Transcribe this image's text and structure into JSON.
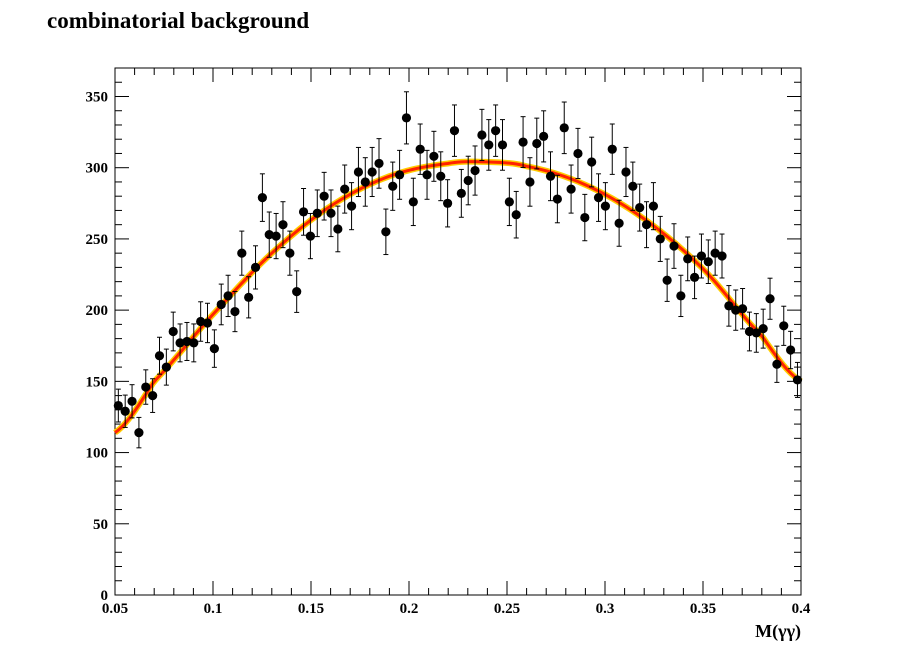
{
  "chart_data": {
    "type": "scatter",
    "title": "combinatorial background",
    "xlabel": "M(γγ)",
    "ylabel": "",
    "xlim": [
      0.05,
      0.4
    ],
    "ylim": [
      0,
      370
    ],
    "xticks": [
      "0.05",
      "0.1",
      "0.15",
      "0.2",
      "0.25",
      "0.3",
      "0.35",
      "0.4"
    ],
    "yticks": [
      "0",
      "50",
      "100",
      "150",
      "200",
      "250",
      "300",
      "350"
    ],
    "grid": false,
    "colors": {
      "points": "#000000",
      "fit": "#ff2200",
      "fit_band": "#ffcc00"
    },
    "points": [
      {
        "x": 0.0517,
        "y": 133
      },
      {
        "x": 0.0552,
        "y": 129
      },
      {
        "x": 0.0587,
        "y": 136
      },
      {
        "x": 0.0622,
        "y": 114
      },
      {
        "x": 0.0657,
        "y": 146
      },
      {
        "x": 0.0692,
        "y": 140
      },
      {
        "x": 0.0727,
        "y": 168
      },
      {
        "x": 0.0762,
        "y": 160
      },
      {
        "x": 0.0797,
        "y": 185
      },
      {
        "x": 0.0832,
        "y": 177
      },
      {
        "x": 0.0867,
        "y": 178
      },
      {
        "x": 0.0902,
        "y": 177
      },
      {
        "x": 0.0937,
        "y": 192
      },
      {
        "x": 0.0972,
        "y": 191
      },
      {
        "x": 0.1007,
        "y": 173
      },
      {
        "x": 0.1042,
        "y": 204
      },
      {
        "x": 0.1077,
        "y": 210
      },
      {
        "x": 0.1112,
        "y": 199
      },
      {
        "x": 0.1147,
        "y": 240
      },
      {
        "x": 0.1182,
        "y": 209
      },
      {
        "x": 0.1217,
        "y": 230
      },
      {
        "x": 0.1252,
        "y": 279
      },
      {
        "x": 0.1287,
        "y": 253
      },
      {
        "x": 0.1322,
        "y": 252
      },
      {
        "x": 0.1357,
        "y": 260
      },
      {
        "x": 0.1392,
        "y": 240
      },
      {
        "x": 0.1427,
        "y": 213
      },
      {
        "x": 0.1462,
        "y": 269
      },
      {
        "x": 0.1497,
        "y": 252
      },
      {
        "x": 0.1532,
        "y": 268
      },
      {
        "x": 0.1567,
        "y": 280
      },
      {
        "x": 0.1602,
        "y": 268
      },
      {
        "x": 0.1637,
        "y": 257
      },
      {
        "x": 0.1672,
        "y": 285
      },
      {
        "x": 0.1707,
        "y": 273
      },
      {
        "x": 0.1742,
        "y": 297
      },
      {
        "x": 0.1777,
        "y": 290
      },
      {
        "x": 0.1812,
        "y": 297
      },
      {
        "x": 0.1847,
        "y": 303
      },
      {
        "x": 0.1882,
        "y": 255
      },
      {
        "x": 0.1917,
        "y": 287
      },
      {
        "x": 0.1952,
        "y": 295
      },
      {
        "x": 0.1987,
        "y": 335
      },
      {
        "x": 0.2022,
        "y": 276
      },
      {
        "x": 0.2057,
        "y": 313
      },
      {
        "x": 0.2092,
        "y": 295
      },
      {
        "x": 0.2127,
        "y": 308
      },
      {
        "x": 0.2162,
        "y": 294
      },
      {
        "x": 0.2197,
        "y": 275
      },
      {
        "x": 0.2232,
        "y": 326
      },
      {
        "x": 0.2267,
        "y": 282
      },
      {
        "x": 0.2302,
        "y": 291
      },
      {
        "x": 0.2337,
        "y": 298
      },
      {
        "x": 0.2372,
        "y": 323
      },
      {
        "x": 0.2407,
        "y": 316
      },
      {
        "x": 0.2442,
        "y": 326
      },
      {
        "x": 0.2477,
        "y": 316
      },
      {
        "x": 0.2512,
        "y": 276
      },
      {
        "x": 0.2547,
        "y": 267
      },
      {
        "x": 0.2582,
        "y": 318
      },
      {
        "x": 0.2617,
        "y": 290
      },
      {
        "x": 0.2652,
        "y": 317
      },
      {
        "x": 0.2687,
        "y": 322
      },
      {
        "x": 0.2722,
        "y": 294
      },
      {
        "x": 0.2757,
        "y": 278
      },
      {
        "x": 0.2792,
        "y": 328
      },
      {
        "x": 0.2827,
        "y": 285
      },
      {
        "x": 0.2862,
        "y": 310
      },
      {
        "x": 0.2897,
        "y": 265
      },
      {
        "x": 0.2932,
        "y": 304
      },
      {
        "x": 0.2967,
        "y": 279
      },
      {
        "x": 0.3002,
        "y": 273
      },
      {
        "x": 0.3037,
        "y": 313
      },
      {
        "x": 0.3072,
        "y": 261
      },
      {
        "x": 0.3107,
        "y": 297
      },
      {
        "x": 0.3142,
        "y": 287
      },
      {
        "x": 0.3177,
        "y": 272
      },
      {
        "x": 0.3212,
        "y": 260
      },
      {
        "x": 0.3247,
        "y": 273
      },
      {
        "x": 0.3282,
        "y": 250
      },
      {
        "x": 0.3317,
        "y": 221
      },
      {
        "x": 0.3352,
        "y": 245
      },
      {
        "x": 0.3387,
        "y": 210
      },
      {
        "x": 0.3422,
        "y": 236
      },
      {
        "x": 0.3457,
        "y": 223
      },
      {
        "x": 0.3492,
        "y": 238
      },
      {
        "x": 0.3527,
        "y": 234
      },
      {
        "x": 0.3562,
        "y": 240
      },
      {
        "x": 0.3597,
        "y": 238
      },
      {
        "x": 0.3632,
        "y": 203
      },
      {
        "x": 0.3667,
        "y": 200
      },
      {
        "x": 0.3702,
        "y": 201
      },
      {
        "x": 0.3737,
        "y": 185
      },
      {
        "x": 0.3772,
        "y": 184
      },
      {
        "x": 0.3807,
        "y": 187
      },
      {
        "x": 0.3842,
        "y": 208
      },
      {
        "x": 0.3877,
        "y": 162
      },
      {
        "x": 0.3912,
        "y": 189
      },
      {
        "x": 0.3947,
        "y": 172
      },
      {
        "x": 0.3982,
        "y": 151
      }
    ],
    "fit_curve": {
      "x": [
        0.05,
        0.07,
        0.1,
        0.13,
        0.16,
        0.19,
        0.22,
        0.24,
        0.26,
        0.29,
        0.32,
        0.35,
        0.38,
        0.4
      ],
      "y": [
        114,
        150,
        197,
        240,
        273,
        294,
        303,
        304,
        301,
        288,
        264,
        229,
        182,
        150
      ]
    }
  }
}
